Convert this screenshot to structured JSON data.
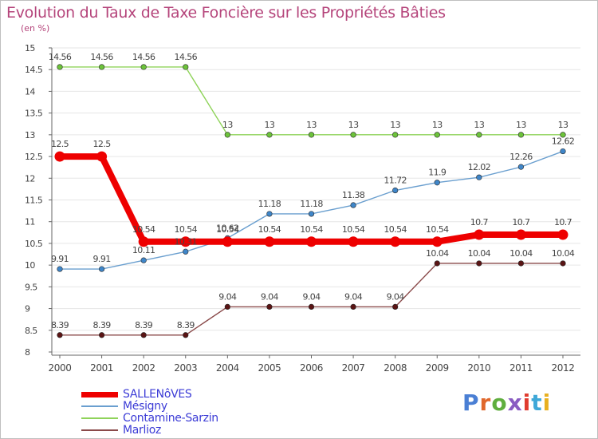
{
  "title": "Evolution du Taux de Taxe Foncière sur les Propriétés Bâties",
  "unit_label": "(en %)",
  "brand": {
    "text": "Proxiti",
    "letter_colors": [
      "#4a7fd4",
      "#e0672b",
      "#5fae3e",
      "#8a5cc2",
      "#e03c2f",
      "#3fa8d8",
      "#e8b020"
    ]
  },
  "chart_data": {
    "type": "line",
    "title": "Evolution du Taux de Taxe Foncière sur les Propriétés Bâties",
    "ylabel": "(en %)",
    "xlabel": "",
    "categories": [
      "2000",
      "2001",
      "2002",
      "2003",
      "2004",
      "2005",
      "2006",
      "2007",
      "2008",
      "2009",
      "2010",
      "2011",
      "2012"
    ],
    "ylim": [
      8,
      15
    ],
    "yticks": [
      "8",
      "8.5",
      "9",
      "9.5",
      "10",
      "10.5",
      "11",
      "11.5",
      "12",
      "12.5",
      "13",
      "13.5",
      "14",
      "14.5",
      "15"
    ],
    "grid": "horizontal",
    "legend_position": "bottom-left",
    "series": [
      {
        "name": "SALLENôVES",
        "color": "#ee0000",
        "bold": true,
        "values": [
          12.5,
          12.5,
          10.54,
          10.54,
          10.54,
          10.54,
          10.54,
          10.54,
          10.54,
          10.54,
          10.7,
          10.7,
          10.7
        ],
        "labels": [
          "12.5",
          "12.5",
          "10.54",
          "10.54",
          "10.54",
          "10.54",
          "10.54",
          "10.54",
          "10.54",
          "10.54",
          "10.7",
          "10.7",
          "10.7"
        ]
      },
      {
        "name": "Mésigny",
        "color": "#6a9fcf",
        "marker_color": "#3f86c9",
        "bold": false,
        "values": [
          9.91,
          9.91,
          10.11,
          10.31,
          10.62,
          11.18,
          11.18,
          11.38,
          11.72,
          11.9,
          12.02,
          12.26,
          12.62
        ],
        "labels": [
          "9.91",
          "9.91",
          "10.11",
          "10.31",
          "10.62",
          "11.18",
          "11.18",
          "11.38",
          "11.72",
          "11.9",
          "12.02",
          "12.26",
          "12.62"
        ]
      },
      {
        "name": "Contamine-Sarzin",
        "color": "#8fd35a",
        "marker_color": "#6cc33a",
        "bold": false,
        "values": [
          14.56,
          14.56,
          14.56,
          14.56,
          13,
          13,
          13,
          13,
          13,
          13,
          13,
          13,
          13
        ],
        "labels": [
          "14.56",
          "14.56",
          "14.56",
          "14.56",
          "13",
          "13",
          "13",
          "13",
          "13",
          "13",
          "13",
          "13",
          "13"
        ]
      },
      {
        "name": "Marlioz",
        "color": "#8a4a4a",
        "marker_color": "#5a1414",
        "bold": false,
        "values": [
          8.39,
          8.39,
          8.39,
          8.39,
          9.04,
          9.04,
          9.04,
          9.04,
          9.04,
          10.04,
          10.04,
          10.04,
          10.04
        ],
        "labels": [
          "8.39",
          "8.39",
          "8.39",
          "8.39",
          "9.04",
          "9.04",
          "9.04",
          "9.04",
          "9.04",
          "10.04",
          "10.04",
          "10.04",
          "10.04"
        ]
      }
    ]
  }
}
